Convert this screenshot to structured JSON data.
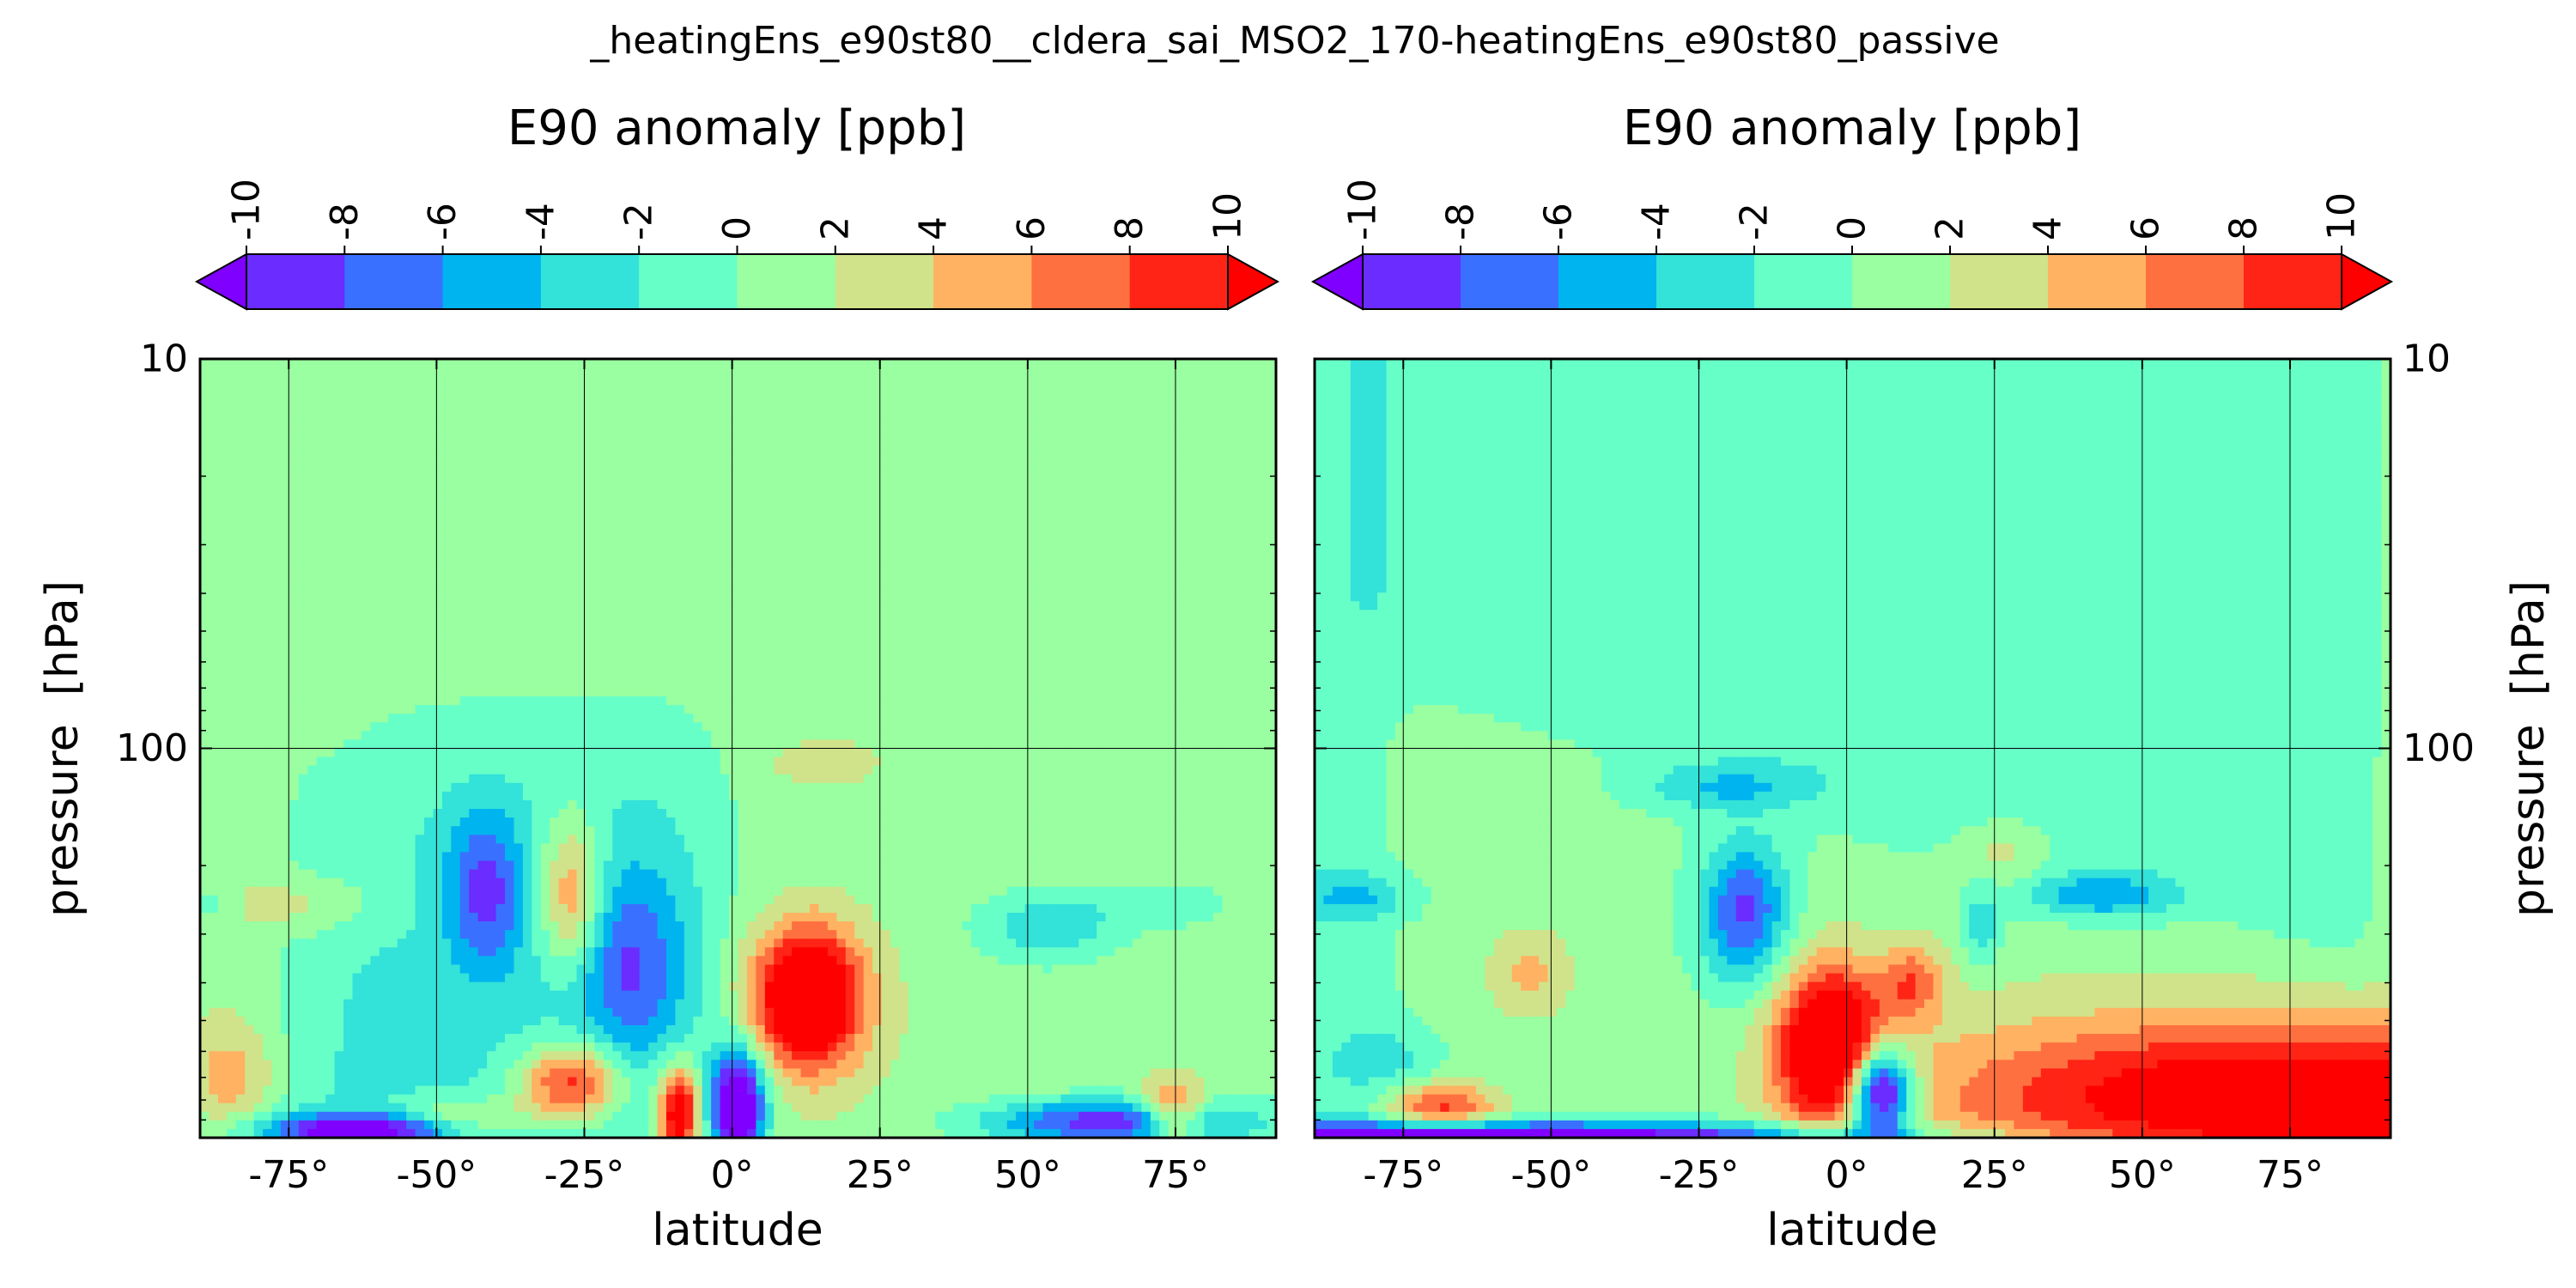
{
  "suptitle": "_heatingEns_e90st80__cldera_sai_MSO2_170-heatingEns_e90st80_passive",
  "colorbar": {
    "label": "E90 anomaly [ppb]",
    "levels": [
      -10,
      -8,
      -6,
      -4,
      -2,
      0,
      2,
      4,
      6,
      8,
      10
    ],
    "tick_labels": [
      "-10",
      "-8",
      "-6",
      "-4",
      "-2",
      "0",
      "2",
      "4",
      "6",
      "8",
      "10"
    ],
    "colors": [
      "#6a2cff",
      "#3a70ff",
      "#00b4ef",
      "#33e2d8",
      "#66ffc8",
      "#99ffa0",
      "#d0e38a",
      "#ffb262",
      "#ff7040",
      "#ff2415"
    ],
    "under_color": "#7f00ff",
    "over_color": "#ff0000",
    "extend": "both"
  },
  "chart_data": [
    {
      "type": "heatmap",
      "subtype": "filled-contour",
      "panel": "left",
      "xlabel": "latitude",
      "ylabel": "pressure  [hPa]",
      "xlim": [
        -90,
        92
      ],
      "ylim": [
        1000,
        10
      ],
      "yscale": "log",
      "x_tick_values": [
        -75,
        -50,
        -25,
        0,
        25,
        50,
        75
      ],
      "x_tick_labels": [
        "-75°",
        "-50°",
        "-25°",
        "0°",
        "25°",
        "50°",
        "75°"
      ],
      "y_tick_values": [
        10,
        100
      ],
      "y_tick_labels": [
        "10",
        "100"
      ],
      "grid": true,
      "ylabel_side": "left",
      "background_value": 1
    },
    {
      "type": "heatmap",
      "subtype": "filled-contour",
      "panel": "right",
      "xlabel": "latitude",
      "ylabel": "pressure  [hPa]",
      "xlim": [
        -90,
        92
      ],
      "ylim": [
        1000,
        10
      ],
      "yscale": "log",
      "x_tick_values": [
        -75,
        -50,
        -25,
        0,
        25,
        50,
        75
      ],
      "x_tick_labels": [
        "-75°",
        "-50°",
        "-25°",
        "0°",
        "25°",
        "50°",
        "75°"
      ],
      "y_tick_values": [
        10,
        100
      ],
      "y_tick_labels": [
        "10",
        "100"
      ],
      "grid": true,
      "ylabel_side": "right",
      "background_value": 1
    }
  ]
}
